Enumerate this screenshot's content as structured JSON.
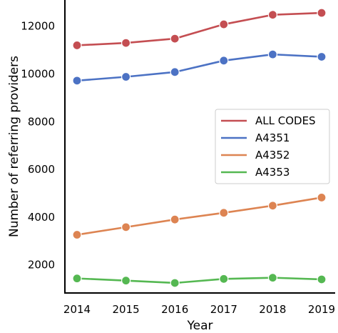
{
  "chart_data": {
    "type": "line",
    "title": "",
    "xlabel": "Year",
    "ylabel": "Number of referring providers",
    "x": [
      2014,
      2015,
      2016,
      2017,
      2018,
      2019
    ],
    "xlim": [
      2014,
      2019
    ],
    "ylim": [
      820,
      13100
    ],
    "y_ticks": [
      2000,
      4000,
      6000,
      8000,
      10000,
      12000
    ],
    "grid": false,
    "legend_position": "center-right",
    "series": [
      {
        "name": "ALL CODES",
        "color": "#c44e52",
        "values": [
          11200,
          11300,
          11480,
          12080,
          12480,
          12560
        ]
      },
      {
        "name": "A4351",
        "color": "#4c72c4",
        "values": [
          9720,
          9880,
          10080,
          10560,
          10820,
          10720
        ]
      },
      {
        "name": "A4352",
        "color": "#dd8452",
        "values": [
          3260,
          3580,
          3900,
          4180,
          4480,
          4820
        ]
      },
      {
        "name": "A4353",
        "color": "#55b852",
        "values": [
          1430,
          1340,
          1240,
          1410,
          1460,
          1390
        ]
      }
    ]
  }
}
